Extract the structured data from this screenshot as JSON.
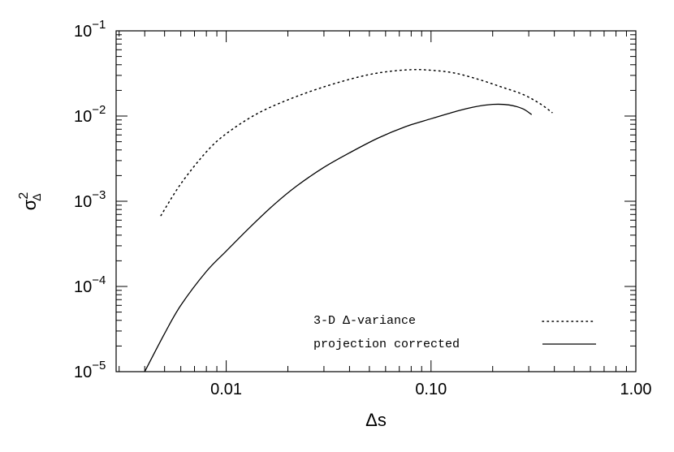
{
  "chart_data": {
    "type": "line",
    "xlabel": "Δs",
    "ylabel": {
      "base": "σ",
      "sub": "Δ",
      "sup": "2"
    },
    "xscale": "log",
    "yscale": "log",
    "xlim": [
      0.0029,
      1.0
    ],
    "ylim": [
      1e-05,
      0.1
    ],
    "x_ticks": [
      {
        "value": 0.01,
        "label": "0.01"
      },
      {
        "value": 0.1,
        "label": "0.10"
      },
      {
        "value": 1.0,
        "label": "1.00"
      }
    ],
    "y_ticks": [
      {
        "value": 1e-05,
        "label": "10",
        "exp": "−5"
      },
      {
        "value": 0.0001,
        "label": "10",
        "exp": "−4"
      },
      {
        "value": 0.001,
        "label": "10",
        "exp": "−3"
      },
      {
        "value": 0.01,
        "label": "10",
        "exp": "−2"
      },
      {
        "value": 0.1,
        "label": "10",
        "exp": "−1"
      }
    ],
    "legend_position": "bottom-right",
    "series": [
      {
        "name": "3-D Δ-variance",
        "style": "dotted",
        "x": [
          0.0048,
          0.006,
          0.008,
          0.01,
          0.014,
          0.02,
          0.03,
          0.045,
          0.06,
          0.08,
          0.1,
          0.13,
          0.17,
          0.22,
          0.28,
          0.34,
          0.39
        ],
        "y": [
          0.00068,
          0.0016,
          0.0038,
          0.0062,
          0.0105,
          0.0155,
          0.022,
          0.029,
          0.033,
          0.035,
          0.0345,
          0.032,
          0.027,
          0.022,
          0.018,
          0.014,
          0.011
        ]
      },
      {
        "name": "projection corrected",
        "style": "solid",
        "x": [
          0.004,
          0.005,
          0.006,
          0.008,
          0.01,
          0.013,
          0.017,
          0.022,
          0.03,
          0.04,
          0.055,
          0.075,
          0.1,
          0.13,
          0.16,
          0.2,
          0.24,
          0.28,
          0.31
        ],
        "y": [
          1e-05,
          2.8e-05,
          6e-05,
          0.00015,
          0.00026,
          0.00049,
          0.0009,
          0.0015,
          0.0025,
          0.0037,
          0.0055,
          0.0075,
          0.0093,
          0.0112,
          0.0127,
          0.0137,
          0.0135,
          0.0122,
          0.0104
        ]
      }
    ]
  }
}
